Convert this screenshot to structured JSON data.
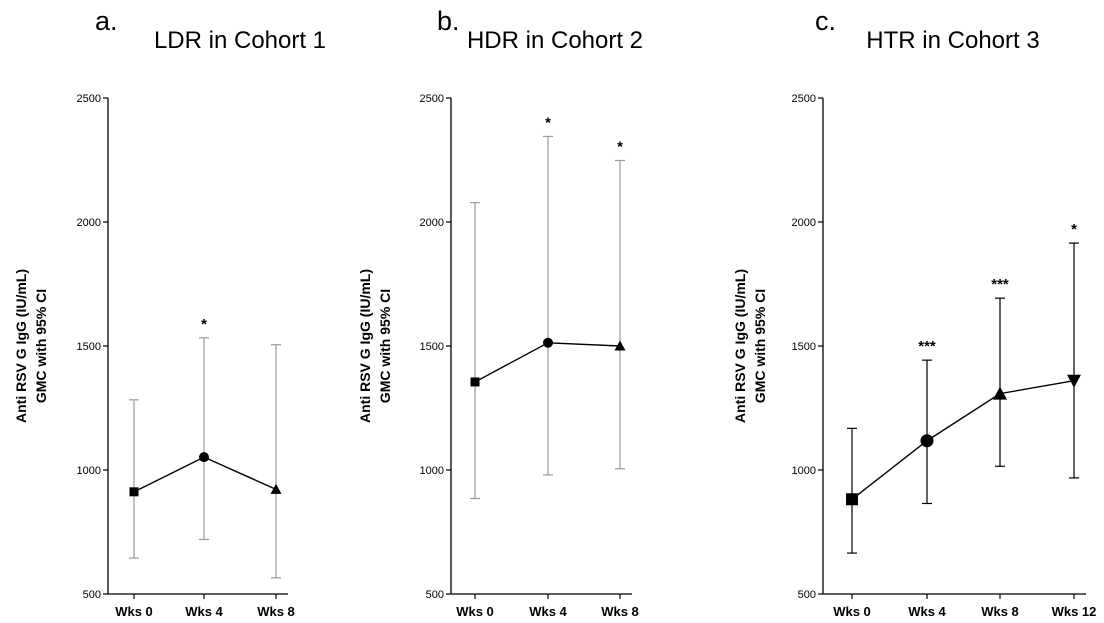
{
  "chart_data": [
    {
      "type": "line",
      "panel_letter": "a.",
      "title": "LDR in Cohort 1",
      "ylabel_line1": "Anti RSV G IgG (IU/mL)",
      "ylabel_line2": "GMC with 95% CI",
      "ylim": [
        500,
        2500
      ],
      "yticks": [
        500,
        1000,
        1500,
        2000,
        2500
      ],
      "categories": [
        "Wks 0",
        "Wks 4",
        "Wks 8"
      ],
      "values": [
        912,
        1052,
        922
      ],
      "ci_lower": [
        645,
        720,
        565
      ],
      "ci_upper": [
        1283,
        1533,
        1505
      ],
      "markers": [
        "square",
        "circle",
        "triangle-up"
      ],
      "significance": [
        "",
        "*",
        ""
      ],
      "error_bar_color": "#9a9a9a",
      "line_color": "#000000"
    },
    {
      "type": "line",
      "panel_letter": "b.",
      "title": "HDR in Cohort 2",
      "ylabel_line1": "Anti RSV G IgG (IU/mL)",
      "ylabel_line2": "GMC with 95% CI",
      "ylim": [
        500,
        2500
      ],
      "yticks": [
        500,
        1000,
        1500,
        2000,
        2500
      ],
      "categories": [
        "Wks 0",
        "Wks 4",
        "Wks 8"
      ],
      "values": [
        1355,
        1513,
        1500
      ],
      "ci_lower": [
        885,
        980,
        1005
      ],
      "ci_upper": [
        2078,
        2345,
        2248
      ],
      "markers": [
        "square",
        "circle",
        "triangle-up"
      ],
      "significance": [
        "",
        "*",
        "*"
      ],
      "error_bar_color": "#9a9a9a",
      "line_color": "#000000"
    },
    {
      "type": "line",
      "panel_letter": "c.",
      "title": "HTR in Cohort 3",
      "ylabel_line1": "Anti RSV G IgG (IU/mL)",
      "ylabel_line2": "GMC with 95% CI",
      "ylim": [
        500,
        2500
      ],
      "yticks": [
        500,
        1000,
        1500,
        2000,
        2500
      ],
      "categories": [
        "Wks 0",
        "Wks 4",
        "Wks 8",
        "Wks 12"
      ],
      "values": [
        882,
        1118,
        1308,
        1360
      ],
      "ci_lower": [
        665,
        865,
        1015,
        968
      ],
      "ci_upper": [
        1168,
        1443,
        1693,
        1915
      ],
      "markers": [
        "square",
        "circle",
        "triangle-up",
        "triangle-down"
      ],
      "significance": [
        "",
        "***",
        "***",
        "*"
      ],
      "error_bar_color": "#000000",
      "line_color": "#000000"
    }
  ]
}
